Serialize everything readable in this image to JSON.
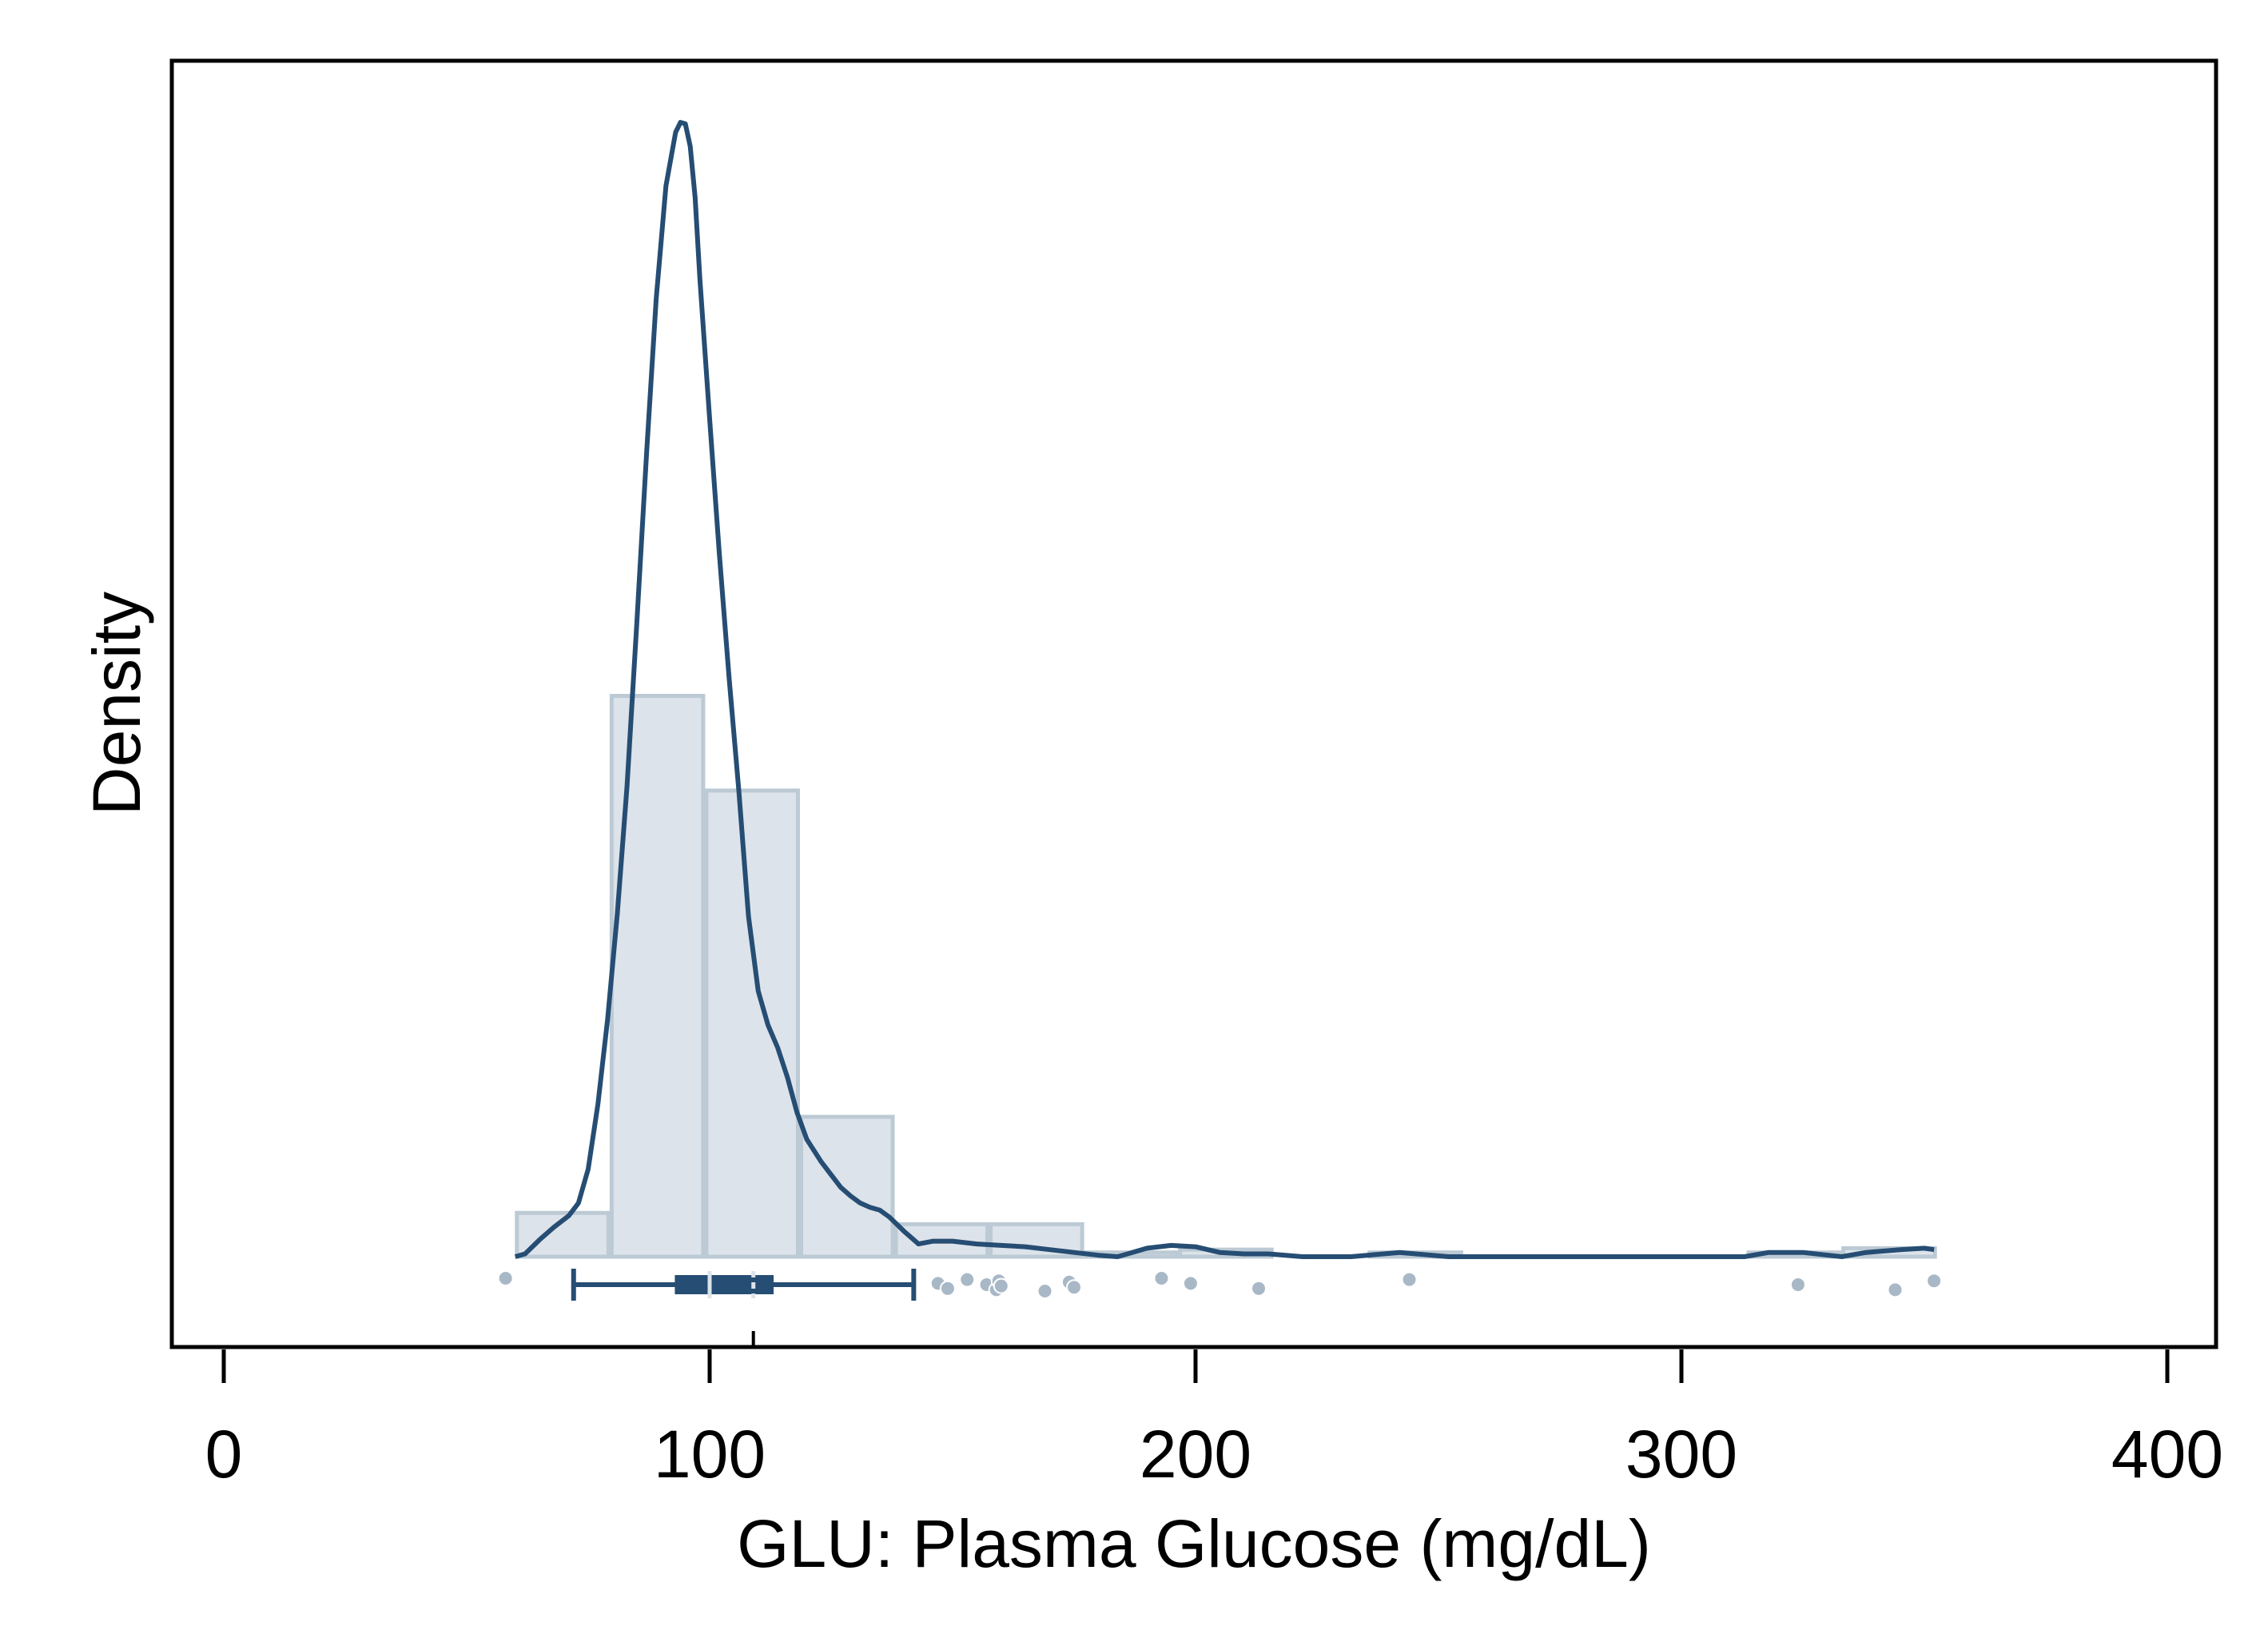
{
  "chart_data": {
    "type": "histogram",
    "title": "",
    "xlabel": "GLU: Plasma Glucose (mg/dL)",
    "ylabel": "Density",
    "xlim": [
      -10,
      410
    ],
    "x_ticks": [
      0,
      100,
      200,
      300,
      400
    ],
    "x_tick_labels": [
      "0",
      "100",
      "200",
      "300",
      "400"
    ],
    "y_ticks_shown": false,
    "grid": false,
    "legend": "none",
    "colors": {
      "bar_fill": "#dce3ea",
      "bar_edge": "#bccad5",
      "line": "#264d73",
      "points": "#a9b8c6",
      "axes": "#000000"
    },
    "histogram": {
      "bins": [
        {
          "x0": 60,
          "x1": 79.5,
          "height": 0.0031
        },
        {
          "x0": 79.5,
          "x1": 99,
          "height": 0.0397
        },
        {
          "x0": 99,
          "x1": 118.5,
          "height": 0.033
        },
        {
          "x0": 118.5,
          "x1": 138,
          "height": 0.0099
        },
        {
          "x0": 138,
          "x1": 157.5,
          "height": 0.0023
        },
        {
          "x0": 157.5,
          "x1": 177,
          "height": 0.0023
        },
        {
          "x0": 177,
          "x1": 196.5,
          "height": 0.0003
        },
        {
          "x0": 196.5,
          "x1": 216,
          "height": 0.0005
        },
        {
          "x0": 216,
          "x1": 235.5,
          "height": 0.0
        },
        {
          "x0": 235.5,
          "x1": 255,
          "height": 0.0003
        },
        {
          "x0": 255,
          "x1": 274.5,
          "height": 0.0
        },
        {
          "x0": 274.5,
          "x1": 294,
          "height": 0.0
        },
        {
          "x0": 294,
          "x1": 313.5,
          "height": 0.0
        },
        {
          "x0": 313.5,
          "x1": 333,
          "height": 0.0003
        },
        {
          "x0": 333,
          "x1": 352.5,
          "height": 0.0006
        }
      ]
    },
    "density_curve": {
      "x": [
        60,
        62,
        65,
        68,
        71,
        73,
        75,
        77,
        79,
        81,
        83,
        85,
        87,
        89,
        91,
        93,
        94,
        95,
        96,
        97,
        98,
        100,
        102,
        104,
        106,
        108,
        110,
        112,
        114,
        116,
        118,
        120,
        123,
        125,
        127,
        129,
        131,
        133,
        135,
        137,
        140,
        143,
        146,
        150,
        155,
        160,
        165,
        170,
        175,
        180,
        184,
        186,
        190,
        195,
        200,
        205,
        210,
        215,
        222,
        232,
        242,
        252,
        262,
        280,
        300,
        313,
        318,
        325,
        333,
        338,
        345,
        350,
        352
      ],
      "y": [
        0.0,
        0.0002,
        0.0012,
        0.0021,
        0.0029,
        0.0038,
        0.0062,
        0.0108,
        0.0168,
        0.0243,
        0.0333,
        0.0448,
        0.0568,
        0.0678,
        0.0758,
        0.0796,
        0.0803,
        0.0802,
        0.0786,
        0.075,
        0.0692,
        0.0593,
        0.0497,
        0.041,
        0.033,
        0.0241,
        0.0188,
        0.0164,
        0.0148,
        0.0127,
        0.0102,
        0.0083,
        0.0067,
        0.0058,
        0.0049,
        0.0043,
        0.0038,
        0.0035,
        0.0033,
        0.0028,
        0.0018,
        0.0009,
        0.0011,
        0.0011,
        0.0009,
        0.0008,
        0.0007,
        0.0005,
        0.0003,
        0.0001,
        0.0,
        0.0002,
        0.0006,
        0.0008,
        0.0007,
        0.0003,
        0.0002,
        0.0002,
        0.0,
        0.0,
        0.0003,
        0.0,
        0.0,
        0.0,
        0.0,
        0.0,
        0.0003,
        0.0003,
        0.0,
        0.0003,
        0.0005,
        0.0006,
        0.0005
      ]
    },
    "boxplot": {
      "whisker_low": 72,
      "q1": 93,
      "median": 100,
      "mean": 109,
      "q3": 113,
      "whisker_high": 142
    },
    "mean_tick": 109,
    "rug_points": [
      58,
      147,
      149,
      153,
      157,
      159,
      159.5,
      160,
      169,
      174,
      175,
      193,
      199,
      213,
      244,
      324,
      344,
      352
    ]
  }
}
